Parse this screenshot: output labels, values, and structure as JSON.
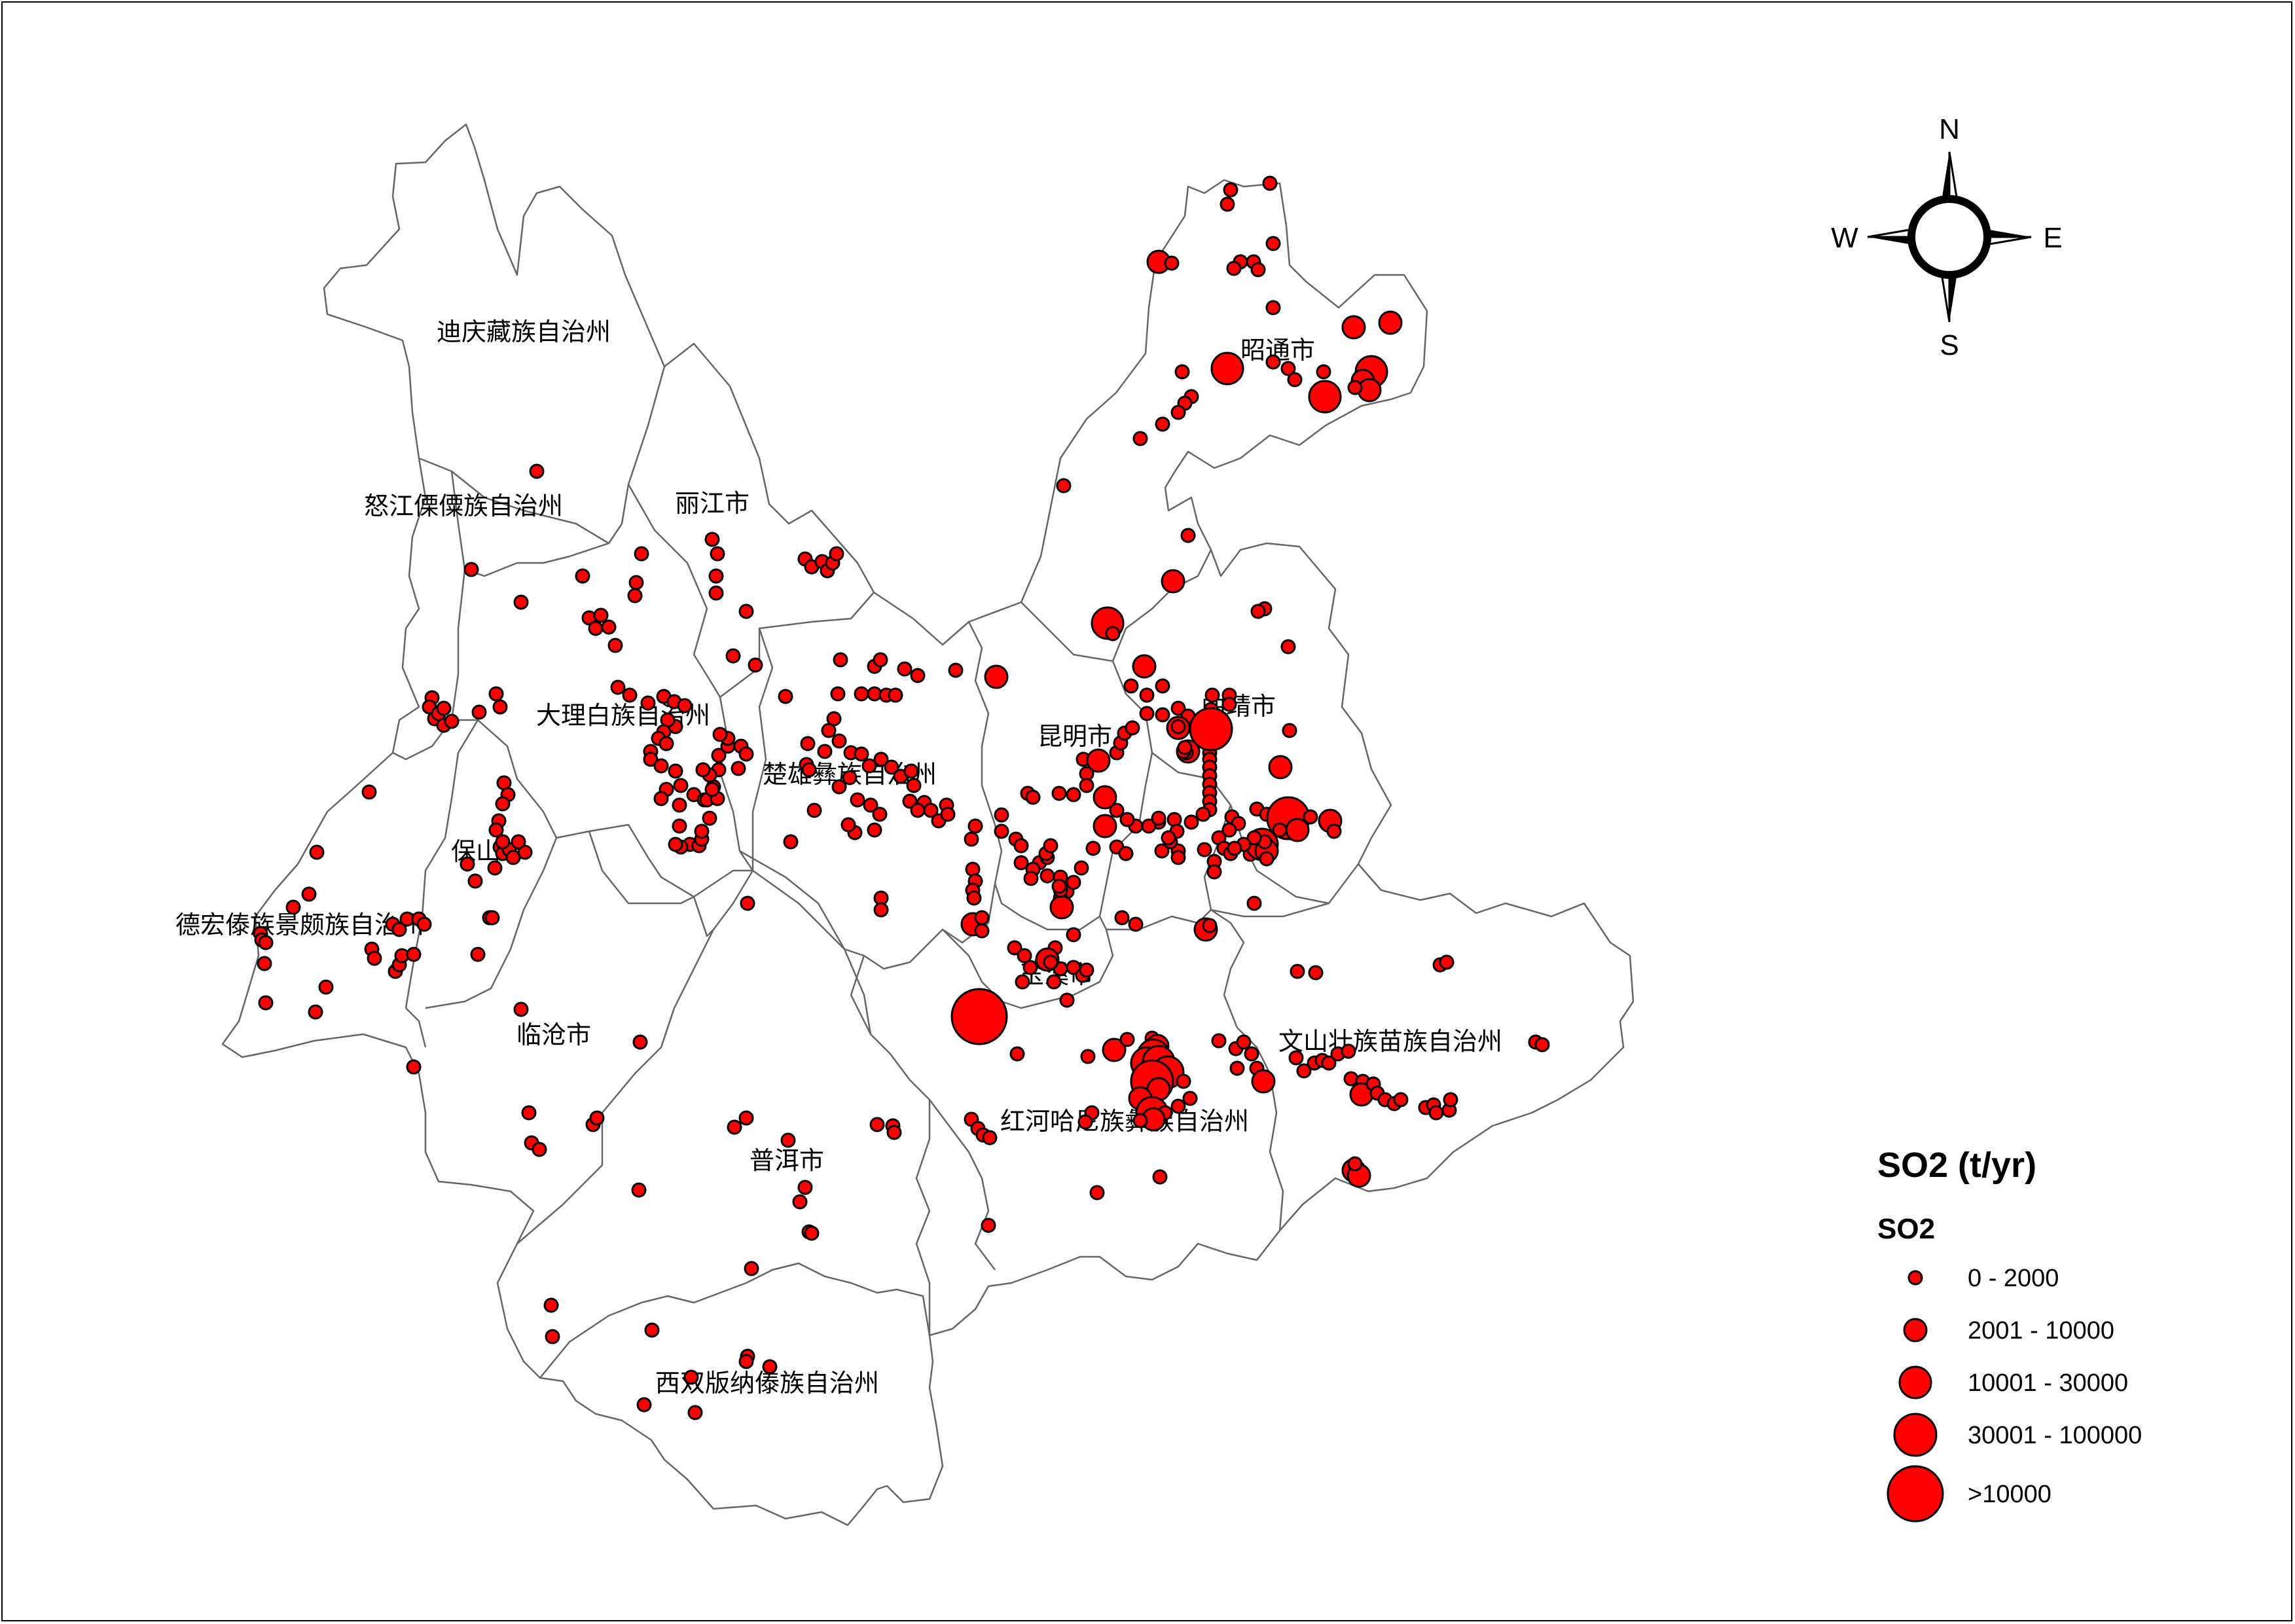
{
  "map": {
    "regions": [
      {
        "name": "迪庆藏族自治州",
        "label": "迪庆藏族自治州"
      },
      {
        "name": "怒江傈僳族自治州",
        "label": "怒江傈僳族自治州"
      },
      {
        "name": "丽江市",
        "label": "丽江市"
      },
      {
        "name": "昭通市",
        "label": "昭通市"
      },
      {
        "name": "大理白族自治州",
        "label": "大理白族自治州"
      },
      {
        "name": "楚雄彝族自治州",
        "label": "楚雄彝族自治州"
      },
      {
        "name": "昆明市",
        "label": "昆明市"
      },
      {
        "name": "曲靖市",
        "label": "曲靖市"
      },
      {
        "name": "保山市",
        "label": "保山市"
      },
      {
        "name": "德宏傣族景颇族自治州",
        "label": "德宏傣族景颇族自治州"
      },
      {
        "name": "玉溪市",
        "label": "玉溪市"
      },
      {
        "name": "临沧市",
        "label": "临沧市"
      },
      {
        "name": "文山壮族苗族自治州",
        "label": "文山壮族苗族自治州"
      },
      {
        "name": "红河哈尼族彝族自治州",
        "label": "红河哈尼族彝族自治州"
      },
      {
        "name": "普洱市",
        "label": "普洱市"
      },
      {
        "name": "西双版纳傣族自治州",
        "label": "西双版纳傣族自治州"
      }
    ]
  },
  "compass": {
    "n": "N",
    "s": "S",
    "e": "E",
    "w": "W"
  },
  "legend": {
    "title": "SO2 (t/yr)",
    "subtitle": "SO2",
    "classes": [
      {
        "label": "0 - 2000",
        "size_class": 1
      },
      {
        "label": "2001 - 10000",
        "size_class": 2
      },
      {
        "label": "10001 - 30000",
        "size_class": 3
      },
      {
        "label": "30001 - 100000",
        "size_class": 4
      },
      {
        "label": ">10000",
        "size_class": 5
      }
    ]
  },
  "style": {
    "marker_fill": "#ff0000",
    "marker_stroke": "#000000",
    "boundary_stroke": "#666666"
  }
}
